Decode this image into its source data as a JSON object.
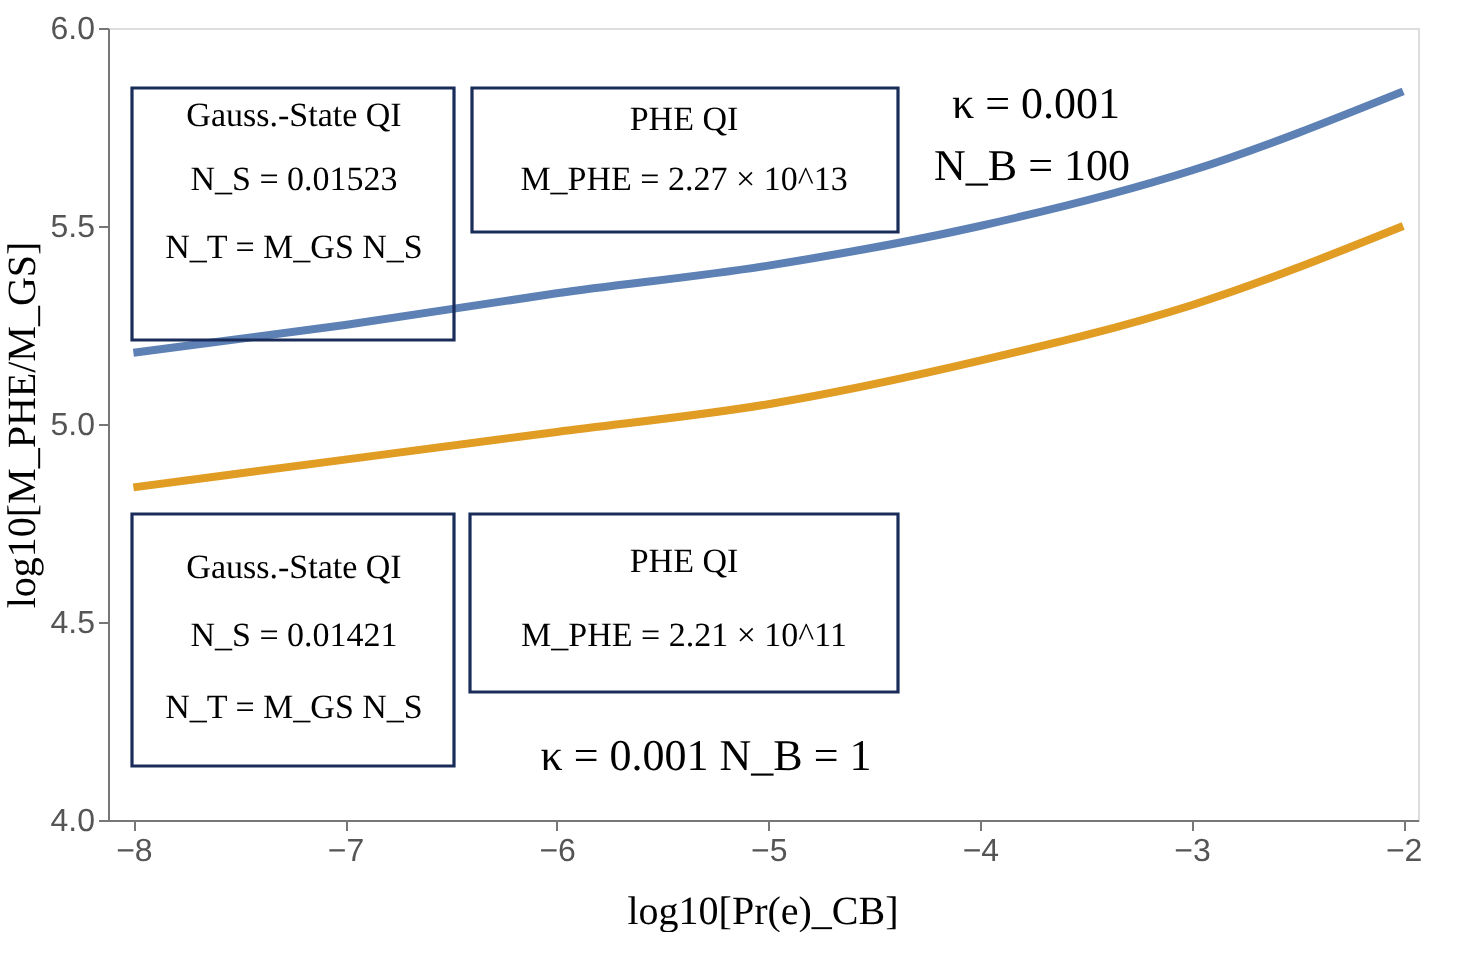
{
  "chart_data": {
    "type": "line",
    "xlabel": "log10[Pr(e)_CB]",
    "ylabel": "log10[M_PHE/M_GS]",
    "x": [
      -8,
      -7,
      -6,
      -5,
      -4,
      -3,
      -2
    ],
    "series": [
      {
        "color": "#5e81b5",
        "values": [
          5.18,
          5.25,
          5.33,
          5.4,
          5.5,
          5.64,
          5.84
        ]
      },
      {
        "color": "#e19c24",
        "values": [
          4.84,
          4.91,
          4.98,
          5.05,
          5.16,
          5.3,
          5.5
        ]
      }
    ],
    "xlim": [
      -8.12,
      -1.93
    ],
    "ylim": [
      4.0,
      6.0
    ],
    "xticks": [
      -8,
      -7,
      -6,
      -5,
      -4,
      -3,
      -2
    ],
    "yticks": [
      {
        "value": 4.0,
        "label": "4.0"
      },
      {
        "value": 4.5,
        "label": "4.5"
      },
      {
        "value": 5.0,
        "label": "5.0"
      },
      {
        "value": 5.5,
        "label": "5.5"
      },
      {
        "value": 6.0,
        "label": "6.0"
      }
    ],
    "grid": false,
    "legend": false,
    "marker": "none",
    "line_style": "solid",
    "annotations": [
      "Gauss.-State QI",
      "N_S = 0.01523",
      "N_T = M_GS N_S",
      "PHE QI",
      "M_PHE = 2.27 × 10^13",
      "κ = 0.001",
      "N_B = 100",
      "Gauss.-State QI",
      "N_S = 0.01421",
      "N_T = M_GS N_S",
      "PHE QI",
      "M_PHE = 2.21 × 10^11",
      "κ = 0.001   N_B = 1"
    ]
  }
}
